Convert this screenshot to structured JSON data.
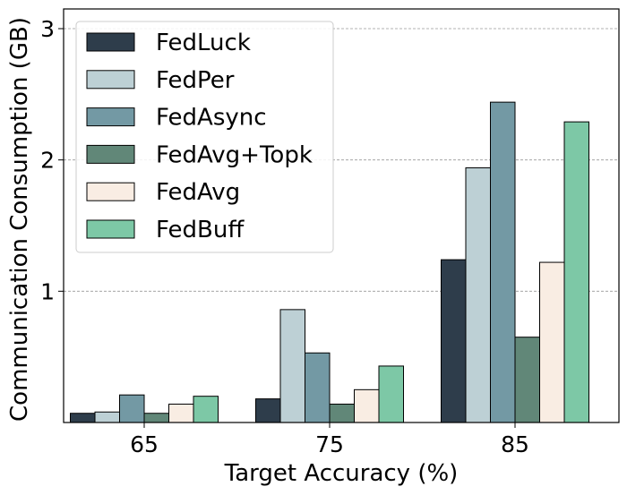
{
  "chart_data": {
    "type": "bar",
    "title": "",
    "xlabel": "Target Accuracy (%)",
    "ylabel": "Communication Consumption (GB)",
    "categories": [
      "65",
      "75",
      "85"
    ],
    "ylim": [
      0,
      3.15
    ],
    "yticks": [
      1,
      2,
      3
    ],
    "grid": "horizontal-dashed",
    "legend_position": "top-left",
    "series": [
      {
        "name": "FedLuck",
        "color": "#2e3d4b",
        "values": [
          0.07,
          0.18,
          1.24
        ]
      },
      {
        "name": "FedPer",
        "color": "#bdd0d5",
        "values": [
          0.08,
          0.86,
          1.94
        ]
      },
      {
        "name": "FedAsync",
        "color": "#7399a4",
        "values": [
          0.21,
          0.53,
          2.44
        ]
      },
      {
        "name": "FedAvg+Topk",
        "color": "#618778",
        "values": [
          0.07,
          0.14,
          0.65
        ]
      },
      {
        "name": "FedAvg",
        "color": "#f9ede3",
        "values": [
          0.14,
          0.25,
          1.22
        ]
      },
      {
        "name": "FedBuff",
        "color": "#7dc8a6",
        "values": [
          0.2,
          0.43,
          2.29
        ]
      }
    ]
  }
}
